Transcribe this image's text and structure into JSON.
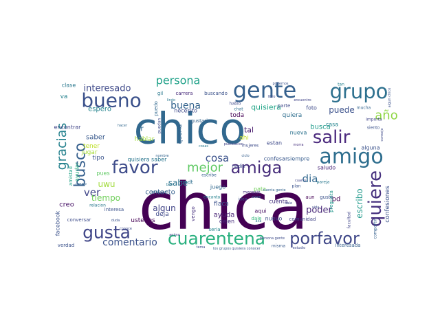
{
  "cloud": {
    "words": [
      {
        "text": "chica",
        "color": "#440154"
      },
      {
        "text": "chico",
        "color": "#31688e"
      },
      {
        "text": "gente",
        "color": "#35608d"
      },
      {
        "text": "grupo",
        "color": "#2d708e"
      },
      {
        "text": "amigo",
        "color": "#2e6e8e"
      },
      {
        "text": "bueno",
        "color": "#3b518b"
      },
      {
        "text": "amiga",
        "color": "#472d7b"
      },
      {
        "text": "favor",
        "color": "#3e4c8a"
      },
      {
        "text": "gusta",
        "color": "#404688"
      },
      {
        "text": "salir",
        "color": "#4c2a7e"
      },
      {
        "text": "busco",
        "color": "#355f8d"
      },
      {
        "text": "quiere",
        "color": "#46307e"
      },
      {
        "text": "cuarentena",
        "color": "#2ab07f"
      },
      {
        "text": "gracias",
        "color": "#26828e"
      },
      {
        "text": "porfavor",
        "color": "#3f4788"
      },
      {
        "text": "año",
        "color": "#8fd744"
      },
      {
        "text": "mejor",
        "color": "#5ec962"
      },
      {
        "text": "persona",
        "color": "#1fa188"
      },
      {
        "text": "cosa",
        "color": "#3b528b"
      },
      {
        "text": "dia",
        "color": "#31688e"
      },
      {
        "text": "comentario",
        "color": "#3b528b"
      },
      {
        "text": "buena",
        "color": "#33638d"
      },
      {
        "text": "interesado",
        "color": "#3e4989"
      },
      {
        "text": "escribo",
        "color": "#1f998a"
      },
      {
        "text": "poder",
        "color": "#482878"
      },
      {
        "text": "ver",
        "color": "#404588"
      },
      {
        "text": "tiempo",
        "color": "#6ece58"
      },
      {
        "text": "algun",
        "color": "#414487"
      },
      {
        "text": "puede",
        "color": "#3b518b"
      },
      {
        "text": "quisiera",
        "color": "#20a486"
      },
      {
        "text": "uwu",
        "color": "#a0da39"
      },
      {
        "text": "sabe",
        "color": "#2c728e"
      },
      {
        "text": "saber",
        "color": "#38598c"
      },
      {
        "text": "espero",
        "color": "#25848e"
      },
      {
        "text": "ayuda",
        "color": "#482475"
      },
      {
        "text": "busca",
        "color": "#1e9b8a"
      },
      {
        "text": "ir",
        "color": "#31688e"
      },
      {
        "text": "pd",
        "color": "#440154"
      },
      {
        "text": "confesiones",
        "color": "#3b528b"
      },
      {
        "text": "contacto",
        "color": "#355f8d"
      },
      {
        "text": "creo",
        "color": "#481467"
      },
      {
        "text": "tal",
        "color": "#481a6c"
      },
      {
        "text": "ahi",
        "color": "#c2df23"
      },
      {
        "text": "hablar",
        "color": "#a2da37"
      },
      {
        "text": "queria",
        "color": "#33638d"
      },
      {
        "text": "quiera",
        "color": "#2e6e8e"
      },
      {
        "text": "estan",
        "color": "#3e4a89"
      },
      {
        "text": "nueva",
        "color": "#2c728e"
      },
      {
        "text": "saludo",
        "color": "#482677"
      },
      {
        "text": "alguna",
        "color": "#3b528b"
      },
      {
        "text": "casa",
        "color": "#25858e"
      },
      {
        "text": "foto",
        "color": "#3e4a89"
      },
      {
        "text": "toda",
        "color": "#440154"
      },
      {
        "text": "tener",
        "color": "#bddf26"
      },
      {
        "text": "jugar",
        "color": "#a5db36"
      },
      {
        "text": "tipo",
        "color": "#3a548c"
      },
      {
        "text": "ayudar",
        "color": "#29af7f"
      },
      {
        "text": "pues",
        "color": "#5ec962"
      },
      {
        "text": "deja",
        "color": "#3e4989"
      },
      {
        "text": "ustedes",
        "color": "#440154"
      },
      {
        "text": "quisiera saber",
        "color": "#2a768e"
      },
      {
        "text": "confesar",
        "color": "#39568c"
      },
      {
        "text": "siempre",
        "color": "#365c8d"
      },
      {
        "text": "cuenta",
        "color": "#46337f"
      },
      {
        "text": "pata",
        "color": "#6ece58"
      },
      {
        "text": "aqui",
        "color": "#471063"
      },
      {
        "text": "nuevo",
        "color": "#3e4c8a"
      },
      {
        "text": "flaca",
        "color": "#3b528b"
      },
      {
        "text": "dejen",
        "color": "#472f7d"
      },
      {
        "text": "juego",
        "color": "#31688e"
      },
      {
        "text": "pregunta",
        "color": "#1f958b"
      },
      {
        "text": "comunidad",
        "color": "#414487"
      },
      {
        "text": "dale",
        "color": "#32b67a"
      },
      {
        "text": "guste",
        "color": "#3b528b"
      },
      {
        "text": "aun",
        "color": "#440154"
      },
      {
        "text": "facebook",
        "color": "#3b528b"
      },
      {
        "text": "encontrar",
        "color": "#404588"
      },
      {
        "text": "clase",
        "color": "#2a788e"
      },
      {
        "text": "va",
        "color": "#26828e"
      },
      {
        "text": "interesada",
        "color": "#355f8d"
      },
      {
        "text": "necesito",
        "color": "#3e4989"
      },
      {
        "text": "carrera",
        "color": "#472a7a"
      },
      {
        "text": "buscando",
        "color": "#3b528b"
      },
      {
        "text": "gustaria",
        "color": "#33638d"
      },
      {
        "text": "mujeres",
        "color": "#3e4c8a"
      },
      {
        "text": "importa",
        "color": "#414487"
      },
      {
        "text": "amistad",
        "color": "#20a386"
      },
      {
        "text": "interesa",
        "color": "#3b528b"
      },
      {
        "text": "relacion",
        "color": "#2a788e"
      },
      {
        "text": "conversar",
        "color": "#3e4c8a"
      },
      {
        "text": "seria",
        "color": "#25848e"
      },
      {
        "text": "idea",
        "color": "#3b528b"
      },
      {
        "text": "verdad",
        "color": "#3b528b"
      },
      {
        "text": "parte",
        "color": "#3e4989"
      },
      {
        "text": "mucha",
        "color": "#33638d"
      },
      {
        "text": "siento",
        "color": "#3b528b"
      },
      {
        "text": "pareja",
        "color": "#2a788e"
      },
      {
        "text": "nadie",
        "color": "#3e4989"
      },
      {
        "text": "mensaje",
        "color": "#46307e"
      },
      {
        "text": "encanta",
        "color": "#26828e"
      },
      {
        "text": "compartir",
        "color": "#35608d"
      },
      {
        "text": "psdt",
        "color": "#2e6e8e"
      },
      {
        "text": "facultad",
        "color": "#404588"
      },
      {
        "text": "puedo",
        "color": "#31688e"
      },
      {
        "text": "hablo",
        "color": "#3e4989"
      },
      {
        "text": "tan",
        "color": "#26828e"
      },
      {
        "text": "misma",
        "color": "#38598c"
      },
      {
        "text": "gil",
        "color": "#2a788e"
      },
      {
        "text": "vengo",
        "color": "#46307e"
      },
      {
        "text": "puedan",
        "color": "#3e4c8a"
      },
      {
        "text": "escribe",
        "color": "#35608d"
      },
      {
        "text": "algun chico",
        "color": "#3b528b"
      },
      {
        "text": "consejo",
        "color": "#3e4989"
      },
      {
        "text": "publicacion",
        "color": "#414487"
      },
      {
        "text": "regalo",
        "color": "#33638d"
      },
      {
        "text": "bien",
        "color": "#2a788e"
      },
      {
        "text": "conoce",
        "color": "#3e4c8a"
      },
      {
        "text": "instagram",
        "color": "#355f8d"
      },
      {
        "text": "chat",
        "color": "#2e6e8e"
      },
      {
        "text": "cuarto",
        "color": "#404588"
      },
      {
        "text": "libro",
        "color": "#3e4989"
      },
      {
        "text": "hacer",
        "color": "#31688e"
      },
      {
        "text": "podemos",
        "color": "#3b528b"
      },
      {
        "text": "morra",
        "color": "#46307e"
      },
      {
        "text": "lindo",
        "color": "#2a788e"
      },
      {
        "text": "persona gente",
        "color": "#3e4c8a"
      },
      {
        "text": "quisiera conocer",
        "color": "#3b528b"
      },
      {
        "text": "los grupos",
        "color": "#35608d"
      },
      {
        "text": "estudio",
        "color": "#3e4989"
      },
      {
        "text": "encuentro",
        "color": "#414487"
      },
      {
        "text": "nombre",
        "color": "#33638d"
      },
      {
        "text": "cosas",
        "color": "#2a788e"
      },
      {
        "text": "vida",
        "color": "#3e4c8a"
      },
      {
        "text": "ciclo",
        "color": "#355f8d"
      },
      {
        "text": "plan",
        "color": "#3b528b"
      },
      {
        "text": "sale",
        "color": "#3e4989"
      },
      {
        "text": "clave",
        "color": "#31688e"
      },
      {
        "text": "duda",
        "color": "#3b528b"
      },
      {
        "text": "aca",
        "color": "#2a788e"
      },
      {
        "text": "animo",
        "color": "#404588"
      },
      {
        "text": "tema",
        "color": "#3e4c8a"
      },
      {
        "text": "cuenta gente",
        "color": "#33638d"
      }
    ]
  }
}
